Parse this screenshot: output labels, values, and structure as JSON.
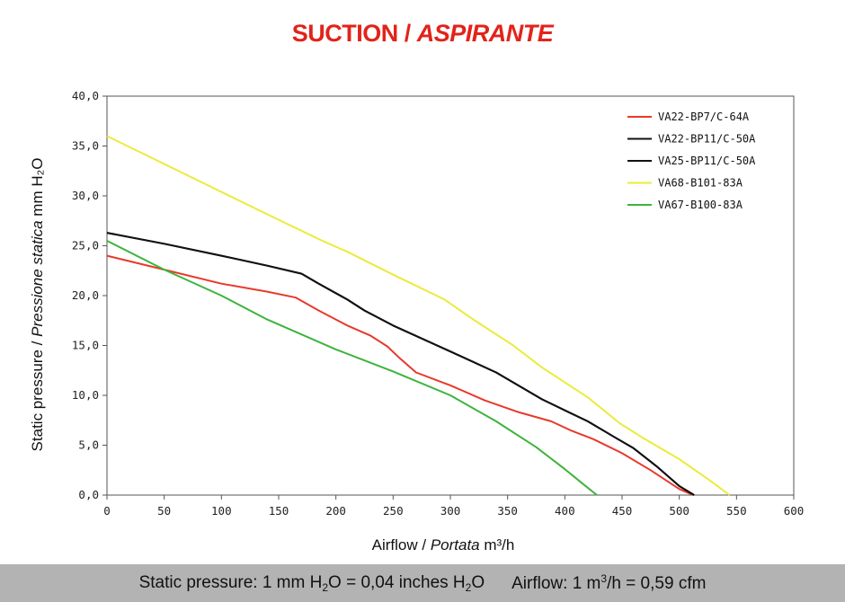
{
  "title": {
    "main": "SUCTION /",
    "italic": "ASPIRANTE"
  },
  "footer": {
    "pressure_prefix": "Static pressure: 1 mm H",
    "pressure_sub": "2",
    "pressure_mid": "O = 0,04 inches H",
    "pressure_sub2": "2",
    "pressure_suffix": "O",
    "airflow_prefix": "Airflow: 1 m",
    "airflow_sup": "3",
    "airflow_suffix": "/h = 0,59 cfm"
  },
  "chart_data": {
    "type": "line",
    "xlabel": {
      "normal": "Airflow",
      "italic": "Portata",
      "unit": "m³/h"
    },
    "ylabel": {
      "normal": "Static pressure",
      "italic": "Pressione statica",
      "unit": "mm  H₂O"
    },
    "xlim": [
      0,
      600
    ],
    "ylim": [
      0,
      40
    ],
    "x_ticks": [
      "0",
      "50",
      "100",
      "150",
      "200",
      "250",
      "300",
      "350",
      "400",
      "450",
      "500",
      "550",
      "600"
    ],
    "y_ticks": [
      "0,0",
      "5,0",
      "10,0",
      "15,0",
      "20,0",
      "25,0",
      "30,0",
      "35,0",
      "40,0"
    ],
    "grid": false,
    "legend_position": "top-right",
    "series": [
      {
        "name": "VA22-BP7/C-64A",
        "color": "#e8392b",
        "points": [
          [
            0,
            24.0
          ],
          [
            50,
            22.6
          ],
          [
            100,
            21.2
          ],
          [
            140,
            20.4
          ],
          [
            165,
            19.8
          ],
          [
            185,
            18.5
          ],
          [
            210,
            17.0
          ],
          [
            230,
            16.0
          ],
          [
            245,
            14.9
          ],
          [
            255,
            13.8
          ],
          [
            270,
            12.3
          ],
          [
            300,
            11.0
          ],
          [
            330,
            9.5
          ],
          [
            360,
            8.3
          ],
          [
            388,
            7.4
          ],
          [
            405,
            6.5
          ],
          [
            425,
            5.6
          ],
          [
            450,
            4.2
          ],
          [
            475,
            2.5
          ],
          [
            500,
            0.6
          ],
          [
            512,
            0.0
          ]
        ]
      },
      {
        "name": "VA22-BP11/C-50A",
        "color": "#111111",
        "points": [
          [
            0,
            26.3
          ],
          [
            50,
            25.2
          ],
          [
            100,
            24.0
          ],
          [
            140,
            23.0
          ],
          [
            170,
            22.2
          ],
          [
            185,
            21.2
          ],
          [
            210,
            19.6
          ],
          [
            225,
            18.5
          ],
          [
            250,
            17.0
          ],
          [
            300,
            14.4
          ],
          [
            340,
            12.3
          ],
          [
            380,
            9.6
          ],
          [
            420,
            7.4
          ],
          [
            445,
            5.7
          ],
          [
            460,
            4.7
          ],
          [
            480,
            2.9
          ],
          [
            500,
            0.9
          ],
          [
            513,
            0.0
          ]
        ]
      },
      {
        "name": "VA25-BP11/C-50A",
        "color": "#111111",
        "points": [
          [
            0,
            26.3
          ],
          [
            50,
            25.2
          ],
          [
            100,
            24.0
          ],
          [
            140,
            23.0
          ],
          [
            170,
            22.2
          ],
          [
            185,
            21.2
          ],
          [
            210,
            19.6
          ],
          [
            225,
            18.5
          ],
          [
            250,
            17.0
          ],
          [
            300,
            14.4
          ],
          [
            340,
            12.3
          ],
          [
            380,
            9.6
          ],
          [
            420,
            7.4
          ],
          [
            445,
            5.7
          ],
          [
            460,
            4.7
          ],
          [
            480,
            2.9
          ],
          [
            500,
            0.9
          ],
          [
            513,
            0.0
          ]
        ]
      },
      {
        "name": "VA68-B101-83A",
        "color": "#ebeb3b",
        "points": [
          [
            0,
            36.0
          ],
          [
            50,
            33.2
          ],
          [
            100,
            30.4
          ],
          [
            150,
            27.6
          ],
          [
            190,
            25.4
          ],
          [
            210,
            24.4
          ],
          [
            250,
            22.1
          ],
          [
            295,
            19.6
          ],
          [
            320,
            17.6
          ],
          [
            355,
            15.0
          ],
          [
            380,
            12.8
          ],
          [
            420,
            9.8
          ],
          [
            448,
            7.2
          ],
          [
            470,
            5.6
          ],
          [
            500,
            3.6
          ],
          [
            525,
            1.6
          ],
          [
            544,
            0.0
          ]
        ]
      },
      {
        "name": "VA67-B100-83A",
        "color": "#3cb43c",
        "points": [
          [
            0,
            25.5
          ],
          [
            50,
            22.6
          ],
          [
            100,
            20.0
          ],
          [
            140,
            17.6
          ],
          [
            200,
            14.6
          ],
          [
            250,
            12.4
          ],
          [
            300,
            10.0
          ],
          [
            340,
            7.4
          ],
          [
            375,
            4.8
          ],
          [
            400,
            2.6
          ],
          [
            415,
            1.2
          ],
          [
            428,
            0.0
          ]
        ]
      }
    ]
  }
}
